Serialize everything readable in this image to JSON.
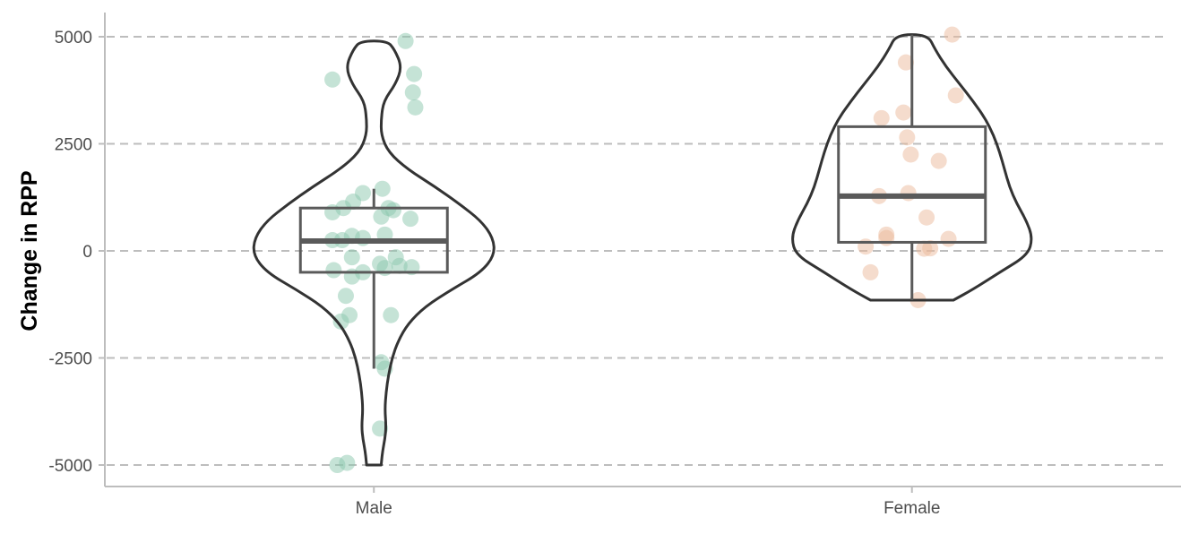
{
  "chart_data": {
    "type": "violin",
    "title": "",
    "xlabel": "",
    "ylabel": "Change in RPP",
    "ylim": [
      -5500,
      5500
    ],
    "y_ticks": [
      5000,
      2500,
      0,
      -2500,
      -5000
    ],
    "y_tick_labels": [
      "5000",
      "2500",
      "0",
      "-2500",
      "-5000"
    ],
    "grid": "horizontal dashed",
    "legend": "none",
    "categories": [
      "Male",
      "Female"
    ],
    "groups": [
      {
        "category": "Male",
        "color": "#8cc7ae",
        "box": {
          "whisker_low": -2750,
          "q1": -500,
          "median": 230,
          "q3": 1000,
          "whisker_high": 1450
        },
        "violin": {
          "y": [
            -5000,
            -4700,
            -4400,
            -4100,
            -3700,
            -3300,
            -2900,
            -2500,
            -2100,
            -1700,
            -1300,
            -900,
            -500,
            -100,
            300,
            700,
            1100,
            1500,
            1900,
            2300,
            2700,
            3100,
            3500,
            3900,
            4300,
            4700,
            4900
          ],
          "width": [
            0.06,
            0.07,
            0.09,
            0.1,
            0.09,
            0.1,
            0.12,
            0.15,
            0.2,
            0.28,
            0.42,
            0.64,
            0.88,
            0.99,
            0.98,
            0.88,
            0.7,
            0.5,
            0.28,
            0.12,
            0.06,
            0.06,
            0.08,
            0.18,
            0.23,
            0.17,
            0.11
          ]
        },
        "points": [
          [
            -5000,
            -0.3
          ],
          [
            -4950,
            -0.22
          ],
          [
            -4150,
            0.05
          ],
          [
            -2750,
            0.09
          ],
          [
            -2600,
            0.06
          ],
          [
            -1650,
            -0.27
          ],
          [
            -1500,
            -0.2
          ],
          [
            -1500,
            0.14
          ],
          [
            -1050,
            -0.23
          ],
          [
            -600,
            -0.18
          ],
          [
            -500,
            -0.09
          ],
          [
            -450,
            -0.33
          ],
          [
            -400,
            0.09
          ],
          [
            -380,
            0.31
          ],
          [
            -350,
            0.21
          ],
          [
            -300,
            0.05
          ],
          [
            -150,
            -0.18
          ],
          [
            -150,
            0.18
          ],
          [
            250,
            -0.34
          ],
          [
            250,
            -0.26
          ],
          [
            300,
            -0.09
          ],
          [
            350,
            -0.18
          ],
          [
            380,
            0.09
          ],
          [
            750,
            0.3
          ],
          [
            800,
            0.06
          ],
          [
            900,
            -0.34
          ],
          [
            950,
            0.16
          ],
          [
            1000,
            -0.25
          ],
          [
            1000,
            0.12
          ],
          [
            1150,
            -0.17
          ],
          [
            1350,
            -0.09
          ],
          [
            1450,
            0.07
          ],
          [
            3350,
            0.34
          ],
          [
            3700,
            0.32
          ],
          [
            4000,
            -0.34
          ],
          [
            4130,
            0.33
          ],
          [
            4900,
            0.26
          ]
        ]
      },
      {
        "category": "Female",
        "color": "#ebb99b",
        "box": {
          "whisker_low": -1150,
          "q1": 200,
          "median": 1280,
          "q3": 2900,
          "whisker_high": 5050
        },
        "violin": {
          "y": [
            -1150,
            -900,
            -500,
            -100,
            300,
            700,
            1100,
            1500,
            1900,
            2300,
            2700,
            3100,
            3500,
            3900,
            4300,
            4700,
            5050
          ],
          "width": [
            0.34,
            0.5,
            0.72,
            0.95,
            0.99,
            0.94,
            0.86,
            0.8,
            0.76,
            0.72,
            0.67,
            0.6,
            0.5,
            0.39,
            0.28,
            0.19,
            0.13
          ]
        },
        "points": [
          [
            -1150,
            0.05
          ],
          [
            -500,
            -0.34
          ],
          [
            50,
            0.1
          ],
          [
            60,
            0.15
          ],
          [
            100,
            -0.38
          ],
          [
            280,
            0.3
          ],
          [
            300,
            -0.21
          ],
          [
            380,
            -0.21
          ],
          [
            780,
            0.12
          ],
          [
            1280,
            -0.27
          ],
          [
            1350,
            -0.03
          ],
          [
            2100,
            0.22
          ],
          [
            2250,
            -0.01
          ],
          [
            2650,
            -0.04
          ],
          [
            3100,
            -0.25
          ],
          [
            3230,
            -0.07
          ],
          [
            3630,
            0.36
          ],
          [
            4400,
            -0.05
          ],
          [
            5050,
            0.33
          ]
        ]
      }
    ]
  }
}
